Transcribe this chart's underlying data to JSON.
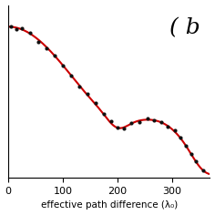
{
  "title": "( b",
  "xlabel": "effective path difference (λ₀)",
  "xlim": [
    0,
    370
  ],
  "background_color": "#ffffff",
  "line_color": "#cc0000",
  "dot_color": "#111111",
  "xticks": [
    0,
    100,
    200,
    300
  ],
  "x_dots": [
    5,
    15,
    25,
    40,
    55,
    70,
    85,
    100,
    115,
    130,
    145,
    160,
    175,
    188,
    200,
    212,
    225,
    240,
    255,
    268,
    280,
    292,
    305,
    315,
    325,
    335,
    345,
    358
  ],
  "figsize": [
    2.36,
    2.36
  ],
  "dpi": 100
}
